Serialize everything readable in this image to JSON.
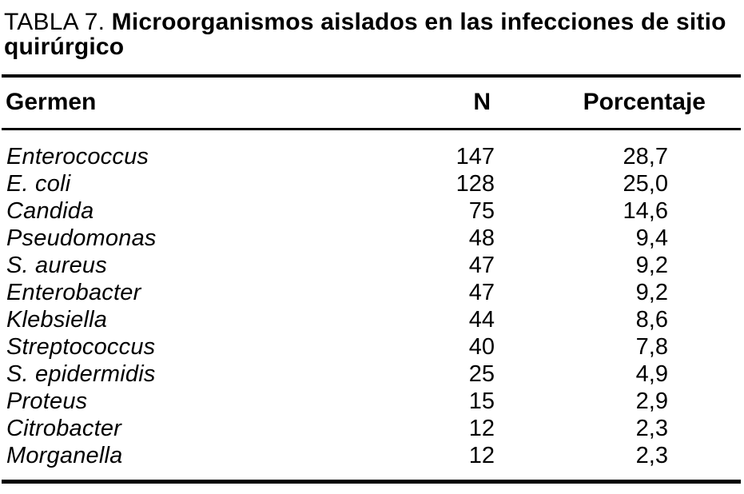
{
  "title": {
    "prefix": "TABLA 7. ",
    "line1_rest": "Microorganismos aislados en las infecciones de sitio",
    "line2": "quirúrgico"
  },
  "table": {
    "columns": {
      "germen": "Germen",
      "n": "N",
      "pct": "Porcentaje"
    },
    "rows": [
      {
        "germen": "Enterococcus",
        "n": "147",
        "pct": "28,7"
      },
      {
        "germen": "E. coli",
        "n": "128",
        "pct": "25,0"
      },
      {
        "germen": "Candida",
        "n": "75",
        "pct": "14,6"
      },
      {
        "germen": "Pseudomonas",
        "n": "48",
        "pct": "9,4"
      },
      {
        "germen": "S. aureus",
        "n": "47",
        "pct": "9,2"
      },
      {
        "germen": "Enterobacter",
        "n": "47",
        "pct": "9,2"
      },
      {
        "germen": "Klebsiella",
        "n": "44",
        "pct": "8,6"
      },
      {
        "germen": "Streptococcus",
        "n": "40",
        "pct": "7,8"
      },
      {
        "germen": "S. epidermidis",
        "n": "25",
        "pct": "4,9"
      },
      {
        "germen": "Proteus",
        "n": "15",
        "pct": "2,9"
      },
      {
        "germen": "Citrobacter",
        "n": "12",
        "pct": "2,3"
      },
      {
        "germen": "Morganella",
        "n": "12",
        "pct": "2,3"
      }
    ]
  },
  "colors": {
    "ink": "#000000",
    "background": "#ffffff"
  }
}
